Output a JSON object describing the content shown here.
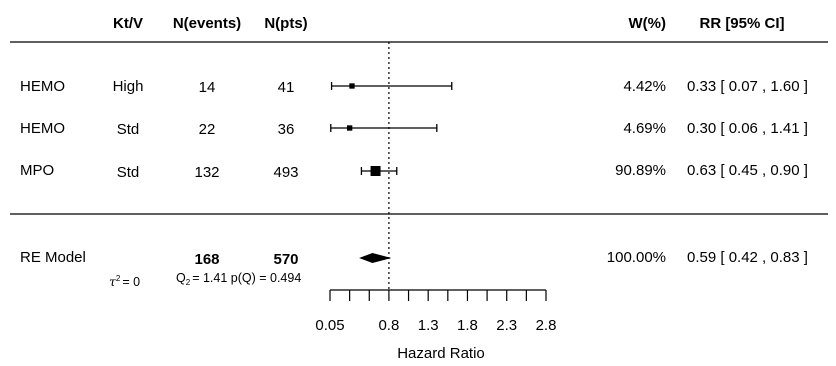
{
  "chart_data": {
    "type": "forest",
    "columns": {
      "study": "",
      "ktv": "Kt/V",
      "events": "N(events)",
      "pts": "N(pts)",
      "weight": "W(%)",
      "rr": "RR [95% CI]"
    },
    "rows": [
      {
        "study": "HEMO",
        "ktv": "High",
        "events": "14",
        "pts": "41",
        "weight": "4.42%",
        "rr_text": "0.33 [ 0.07 , 1.60 ]",
        "estimate": 0.33,
        "ci_low": 0.07,
        "ci_high": 1.6,
        "weight_value": 4.42
      },
      {
        "study": "HEMO",
        "ktv": "Std",
        "events": "22",
        "pts": "36",
        "weight": "4.69%",
        "rr_text": "0.30 [ 0.06 , 1.41 ]",
        "estimate": 0.3,
        "ci_low": 0.06,
        "ci_high": 1.41,
        "weight_value": 4.69
      },
      {
        "study": "MPO",
        "ktv": "Std",
        "events": "132",
        "pts": "493",
        "weight": "90.89%",
        "rr_text": "0.63 [ 0.45 , 0.90 ]",
        "estimate": 0.63,
        "ci_low": 0.45,
        "ci_high": 0.9,
        "weight_value": 90.89
      }
    ],
    "summary": {
      "label": "RE Model",
      "events": "168",
      "pts": "570",
      "weight": "100.00%",
      "rr_text": "0.59 [ 0.42 , 0.83 ]",
      "estimate": 0.59,
      "ci_low": 0.42,
      "ci_high": 0.83,
      "tau2": "= 0",
      "q_text": "= 1.41 p(Q) = 0.494"
    },
    "xaxis": {
      "label": "Hazard Ratio",
      "ticks": [
        0.05,
        0.8,
        1.3,
        1.8,
        2.3,
        2.8
      ],
      "tick_labels": [
        "0.05",
        "0.8",
        "1.3",
        "1.8",
        "2.3",
        "2.8"
      ],
      "minor_ticks": [
        0.05,
        0.3,
        0.55,
        0.8,
        1.05,
        1.3,
        1.55,
        1.8,
        2.05,
        2.3,
        2.55,
        2.8
      ],
      "xlim": [
        0.05,
        2.8
      ],
      "reference": 0.8
    }
  }
}
